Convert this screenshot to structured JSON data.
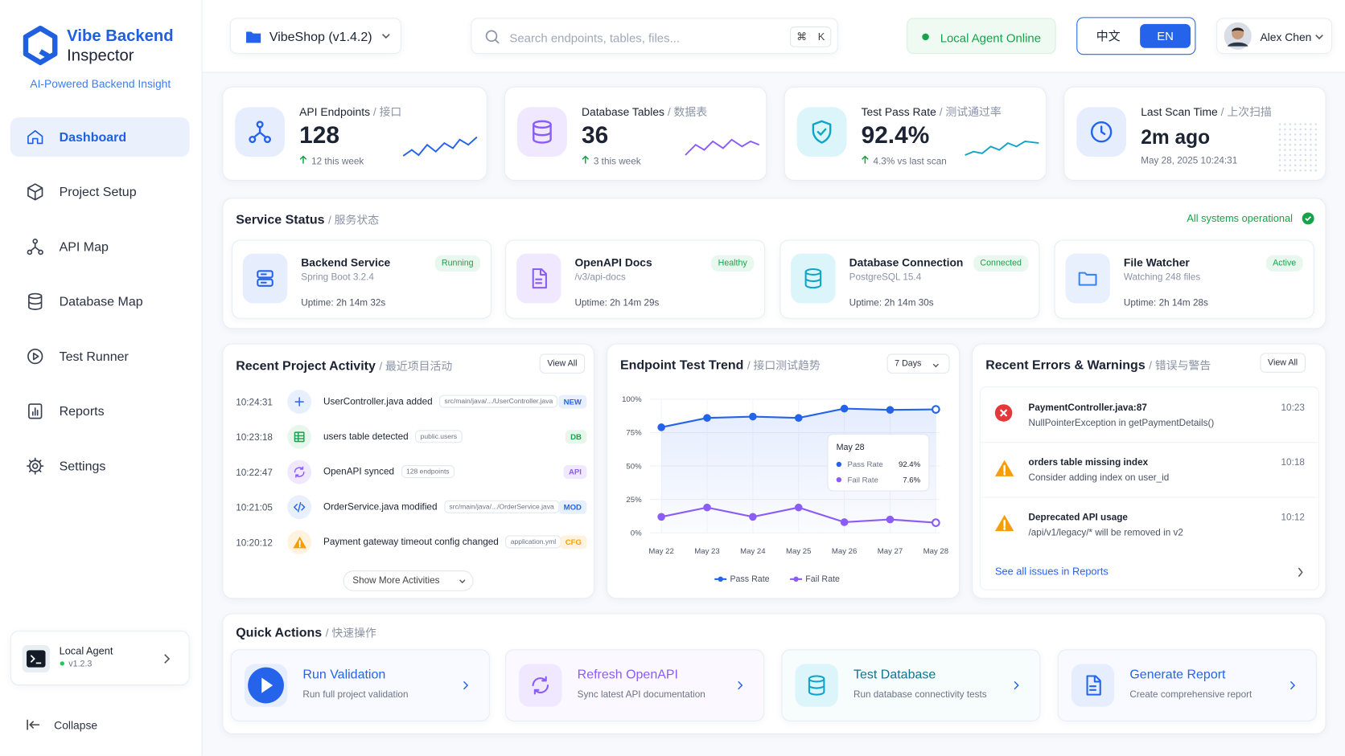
{
  "sidebar": {
    "brand": {
      "title": "Vibe Backend",
      "subtitle": "Inspector",
      "tagline": "AI-Powered Backend Insight"
    },
    "nav": [
      "Dashboard",
      "Project Setup",
      "API Map",
      "Database Map",
      "Test Runner",
      "Reports",
      "Settings"
    ],
    "agent": {
      "name": "Local Agent",
      "version": "v1.2.3"
    },
    "collapse": "Collapse"
  },
  "topbar": {
    "project": "VibeShop (v1.4.2)",
    "search": "Search endpoints, tables, files...",
    "shortcut": [
      "⌘",
      "K"
    ],
    "status": "Local Agent Online",
    "languages": [
      "中文",
      "EN"
    ],
    "user": "Alex Chen"
  },
  "stats": [
    {
      "label": "API Endpoints",
      "label_cn": "/ 接口",
      "value": "128",
      "note": "12 this week"
    },
    {
      "label": "Database Tables",
      "label_cn": "/ 数据表",
      "value": "36",
      "note": "3 this week"
    },
    {
      "label": "Test Pass Rate",
      "label_cn": "/ 测试通过率",
      "value": "92.4%",
      "note": "4.3% vs last scan"
    },
    {
      "label": "Last Scan Time",
      "label_cn": "/ 上次扫描",
      "value": "2m ago",
      "note": "May 28, 2025 10:24:31"
    }
  ],
  "service_status": {
    "title": "Service Status",
    "title_cn": "/ 服务状态",
    "summary": "All systems operational",
    "items": [
      {
        "name": "Backend Service",
        "badge": "Running",
        "detail": "Spring Boot 3.2.4",
        "uptime": "Uptime: 2h 14m 32s"
      },
      {
        "name": "OpenAPI Docs",
        "badge": "Healthy",
        "detail": "/v3/api-docs",
        "uptime": "Uptime: 2h 14m 29s"
      },
      {
        "name": "Database Connection",
        "badge": "Connected",
        "detail": "PostgreSQL 15.4",
        "uptime": "Uptime: 2h 14m 30s"
      },
      {
        "name": "File Watcher",
        "badge": "Active",
        "detail": "Watching 248 files",
        "uptime": "Uptime: 2h 14m 28s"
      }
    ]
  },
  "activity": {
    "title": "Recent Project Activity",
    "title_cn": "/ 最近项目活动",
    "view_all": "View All",
    "items": [
      {
        "time": "10:24:31",
        "text": "UserController.java added",
        "tag": "src/main/java/.../UserController.java",
        "kind": "NEW"
      },
      {
        "time": "10:23:18",
        "text": "users table detected",
        "tag": "public.users",
        "kind": "DB"
      },
      {
        "time": "10:22:47",
        "text": "OpenAPI synced",
        "tag": "128 endpoints",
        "kind": "API"
      },
      {
        "time": "10:21:05",
        "text": "OrderService.java modified",
        "tag": "src/main/java/.../OrderService.java",
        "kind": "MOD"
      },
      {
        "time": "10:20:12",
        "text": "Payment gateway timeout config changed",
        "tag": "application.yml",
        "kind": "CFG"
      }
    ],
    "more": "Show More Activities"
  },
  "trend": {
    "title": "Endpoint Test Trend",
    "title_cn": "/ 接口测试趋势",
    "range": "7 Days"
  },
  "chart_data": {
    "type": "line",
    "categories": [
      "May 22",
      "May 23",
      "May 24",
      "May 25",
      "May 26",
      "May 27",
      "May 28"
    ],
    "series": [
      {
        "name": "Pass Rate",
        "color": "#2563eb",
        "values": [
          79,
          86,
          87,
          86,
          93,
          92,
          92.4
        ]
      },
      {
        "name": "Fail Rate",
        "color": "#8b5cf6",
        "values": [
          12,
          19,
          12,
          19,
          8,
          10,
          7.6
        ]
      }
    ],
    "ylim": [
      0,
      100
    ],
    "yticks": [
      {
        "value": 0,
        "label": "0%"
      },
      {
        "value": 25,
        "label": "25%"
      },
      {
        "value": 50,
        "label": "50%"
      },
      {
        "value": 75,
        "label": "75%"
      },
      {
        "value": 100,
        "label": "100%"
      }
    ],
    "grid": true,
    "tooltip": {
      "title": "May 28",
      "rows": [
        {
          "name": "Pass Rate",
          "value": "92.4%"
        },
        {
          "name": "Fail Rate",
          "value": "7.6%"
        }
      ]
    }
  },
  "errors": {
    "title": "Recent Errors & Warnings",
    "title_cn": "/ 错误与警告",
    "view_all": "View All",
    "items": [
      {
        "title": "PaymentController.java:87",
        "detail": "NullPointerException in getPaymentDetails()",
        "time": "10:23"
      },
      {
        "title": "orders table missing index",
        "detail": "Consider adding index on user_id",
        "time": "10:18"
      },
      {
        "title": "Deprecated API usage",
        "detail": "/api/v1/legacy/* will be removed in v2",
        "time": "10:12"
      }
    ],
    "footer": "See all issues in Reports"
  },
  "quick_actions": {
    "title": "Quick Actions",
    "title_cn": "/ 快速操作",
    "items": [
      {
        "title": "Run Validation",
        "detail": "Run full project validation"
      },
      {
        "title": "Refresh OpenAPI",
        "detail": "Sync latest API documentation"
      },
      {
        "title": "Test Database",
        "detail": "Run database connectivity tests"
      },
      {
        "title": "Generate Report",
        "detail": "Create comprehensive report"
      }
    ]
  }
}
